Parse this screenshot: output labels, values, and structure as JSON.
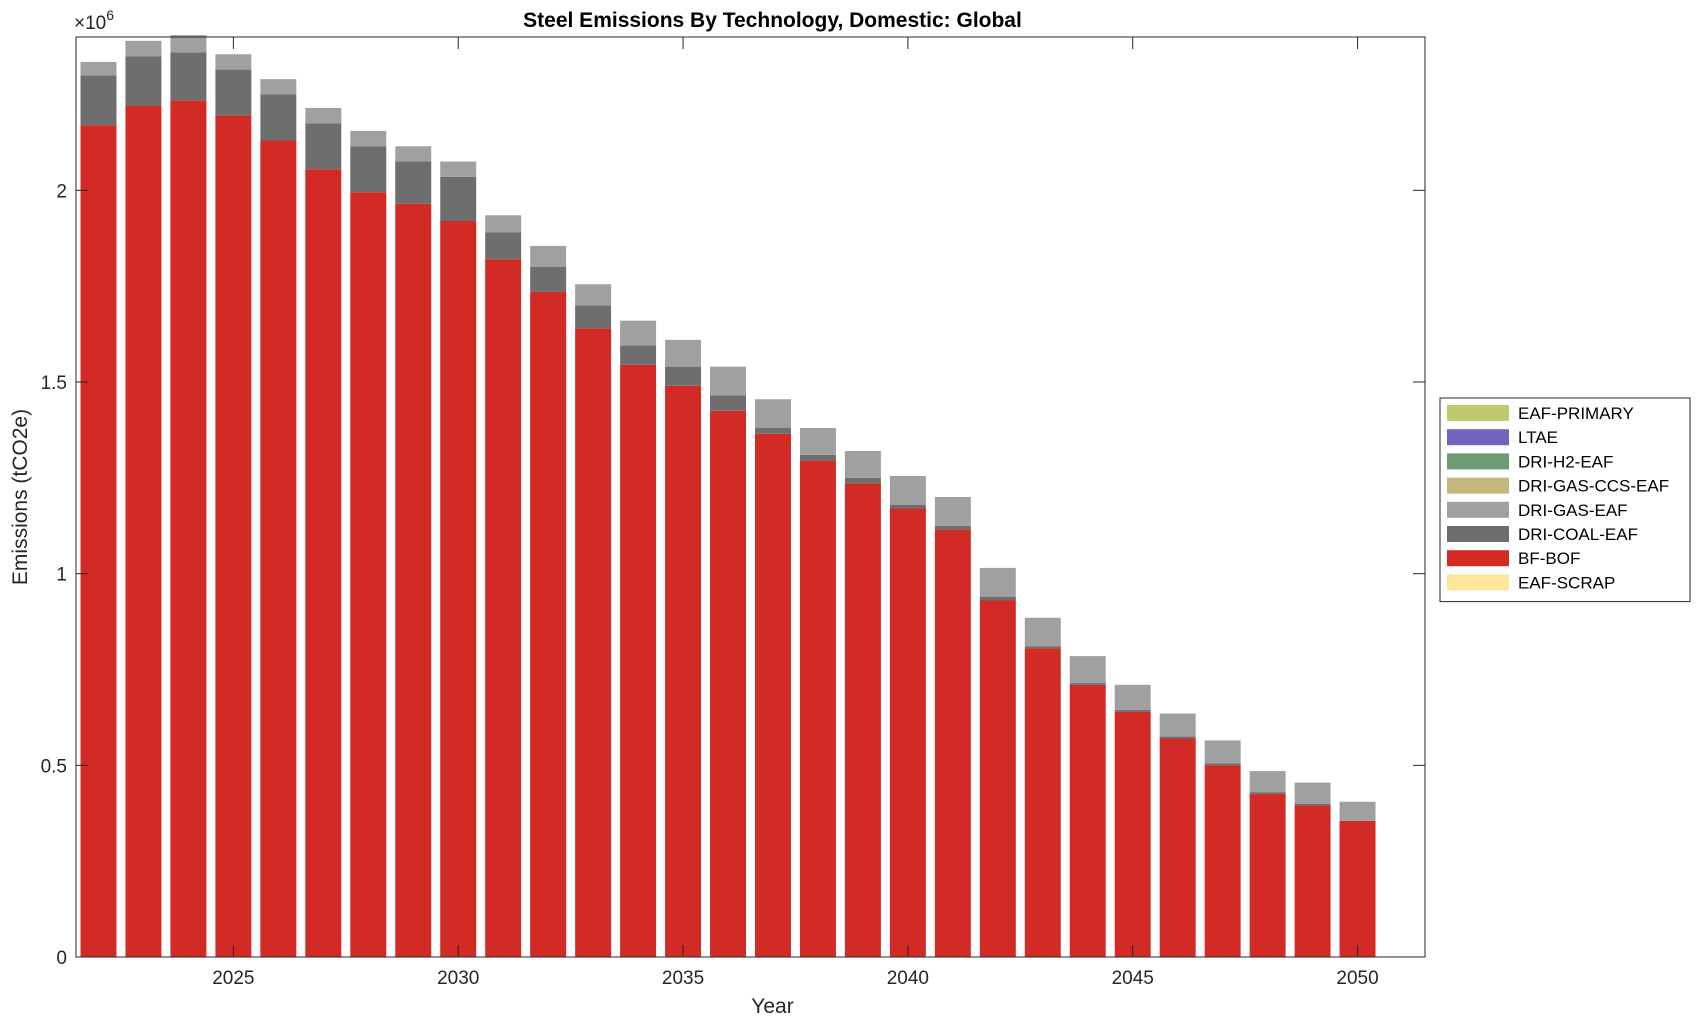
{
  "chart_data": {
    "type": "bar",
    "stacked": true,
    "title": "Steel Emissions By Technology, Domestic: Global",
    "xlabel": "Year",
    "ylabel": "Emissions (tCO2e)",
    "y_exponent_label": "×10",
    "y_exponent_power": "6",
    "y_scale": 1000000,
    "xlim": [
      2021.5,
      2051.5
    ],
    "ylim": [
      0,
      2400000
    ],
    "grid": false,
    "legend_position": "east-outside",
    "x_ticks": [
      2025,
      2030,
      2035,
      2040,
      2045,
      2050
    ],
    "x_tick_labels": [
      "2025",
      "2030",
      "2035",
      "2040",
      "2045",
      "2050"
    ],
    "y_ticks": [
      0,
      500000,
      1000000,
      1500000,
      2000000
    ],
    "y_tick_labels": [
      "0",
      "0.5",
      "1",
      "1.5",
      "2"
    ],
    "categories": [
      2022,
      2023,
      2024,
      2025,
      2026,
      2027,
      2028,
      2029,
      2030,
      2031,
      2032,
      2033,
      2034,
      2035,
      2036,
      2037,
      2038,
      2039,
      2040,
      2041,
      2042,
      2043,
      2044,
      2045,
      2046,
      2047,
      2048,
      2049,
      2050
    ],
    "series": [
      {
        "name": "EAF-SCRAP",
        "color": "#ffe699",
        "values": [
          0,
          0,
          0,
          0,
          0,
          0,
          0,
          0,
          0,
          0,
          0,
          0,
          0,
          0,
          0,
          0,
          0,
          0,
          0,
          0,
          0,
          0,
          0,
          0,
          0,
          0,
          0,
          0,
          0
        ]
      },
      {
        "name": "BF-BOF",
        "color": "#d22b25",
        "values": [
          2170000,
          2220000,
          2235000,
          2195000,
          2130000,
          2055000,
          1995000,
          1965000,
          1920000,
          1820000,
          1735000,
          1640000,
          1545000,
          1490000,
          1425000,
          1365000,
          1295000,
          1235000,
          1170000,
          1115000,
          930000,
          805000,
          710000,
          640000,
          570000,
          500000,
          425000,
          395000,
          355000
        ]
      },
      {
        "name": "DRI-COAL-EAF",
        "color": "#6e6e6e",
        "values": [
          130000,
          130000,
          125000,
          120000,
          120000,
          120000,
          120000,
          110000,
          115000,
          70000,
          65000,
          60000,
          50000,
          50000,
          40000,
          15000,
          15000,
          15000,
          10000,
          10000,
          10000,
          5000,
          5000,
          5000,
          5000,
          5000,
          5000,
          5000,
          0
        ]
      },
      {
        "name": "DRI-GAS-EAF",
        "color": "#a0a0a0",
        "values": [
          35000,
          40000,
          45000,
          40000,
          40000,
          40000,
          40000,
          40000,
          40000,
          45000,
          55000,
          55000,
          65000,
          70000,
          75000,
          75000,
          70000,
          70000,
          75000,
          75000,
          75000,
          75000,
          70000,
          65000,
          60000,
          60000,
          55000,
          55000,
          50000
        ]
      },
      {
        "name": "DRI-GAS-CCS-EAF",
        "color": "#c4b67c",
        "values": [
          0,
          0,
          0,
          0,
          0,
          0,
          0,
          0,
          0,
          0,
          0,
          0,
          0,
          0,
          0,
          0,
          0,
          0,
          0,
          0,
          0,
          0,
          0,
          0,
          0,
          0,
          0,
          0,
          0
        ]
      },
      {
        "name": "DRI-H2-EAF",
        "color": "#6f9a76",
        "values": [
          0,
          0,
          0,
          0,
          0,
          0,
          0,
          0,
          0,
          0,
          0,
          0,
          0,
          0,
          0,
          0,
          0,
          0,
          0,
          0,
          0,
          0,
          0,
          0,
          0,
          0,
          0,
          0,
          0
        ]
      },
      {
        "name": "LTAE",
        "color": "#7164be",
        "values": [
          0,
          0,
          0,
          0,
          0,
          0,
          0,
          0,
          0,
          0,
          0,
          0,
          0,
          0,
          0,
          0,
          0,
          0,
          0,
          0,
          0,
          0,
          0,
          0,
          0,
          0,
          0,
          0,
          0
        ]
      },
      {
        "name": "EAF-PRIMARY",
        "color": "#bfca6c",
        "values": [
          0,
          0,
          0,
          0,
          0,
          0,
          0,
          0,
          0,
          0,
          0,
          0,
          0,
          0,
          0,
          0,
          0,
          0,
          0,
          0,
          0,
          0,
          0,
          0,
          0,
          0,
          0,
          0,
          0
        ]
      }
    ],
    "legend_order": [
      "EAF-PRIMARY",
      "LTAE",
      "DRI-H2-EAF",
      "DRI-GAS-CCS-EAF",
      "DRI-GAS-EAF",
      "DRI-COAL-EAF",
      "BF-BOF",
      "EAF-SCRAP"
    ]
  }
}
